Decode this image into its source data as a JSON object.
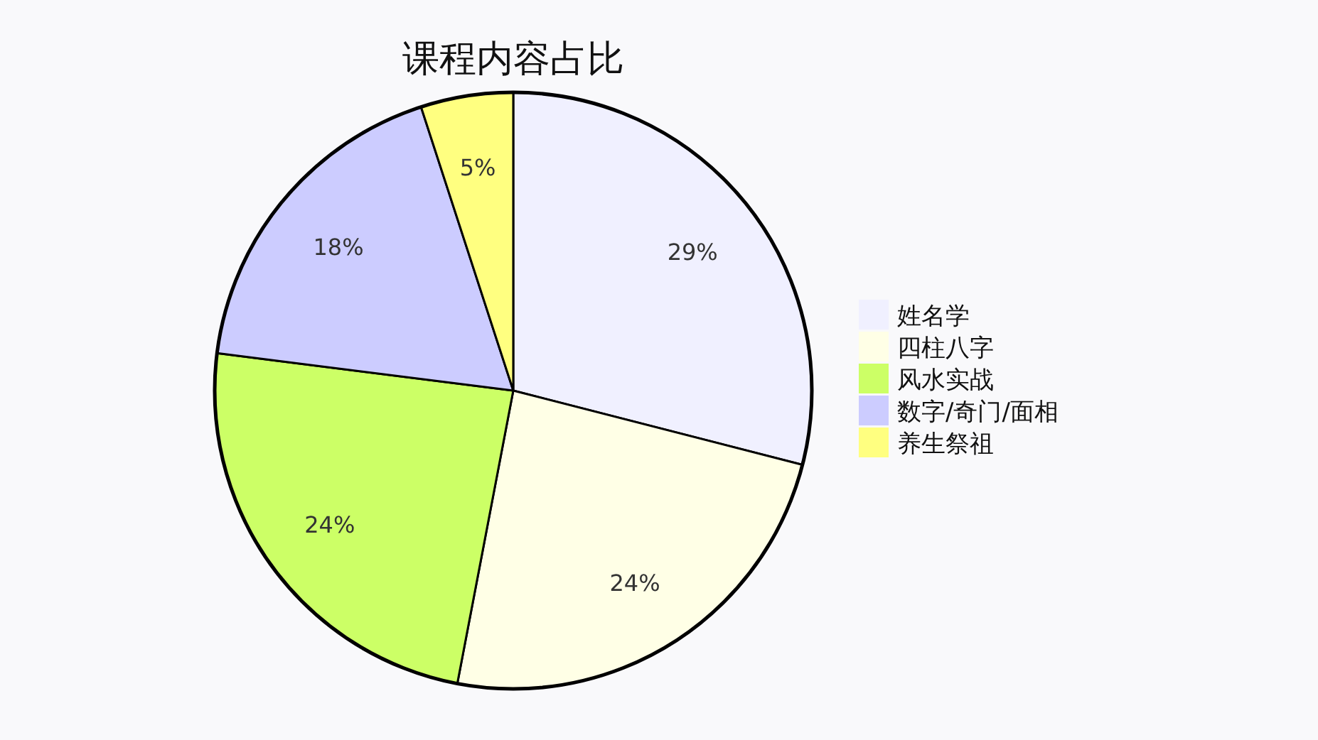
{
  "chart_data": {
    "type": "pie",
    "title": "课程内容占比",
    "categories": [
      "姓名学",
      "四柱八字",
      "风水实战",
      "数字/奇门/面相",
      "养生祭祖"
    ],
    "values": [
      29,
      24,
      24,
      18,
      5
    ],
    "value_labels": [
      "29%",
      "24%",
      "24%",
      "18%",
      "5%"
    ],
    "colors": [
      "#f0f0ff",
      "#ffffe6",
      "#ccff66",
      "#ccccff",
      "#ffff80"
    ],
    "legend": "right"
  }
}
